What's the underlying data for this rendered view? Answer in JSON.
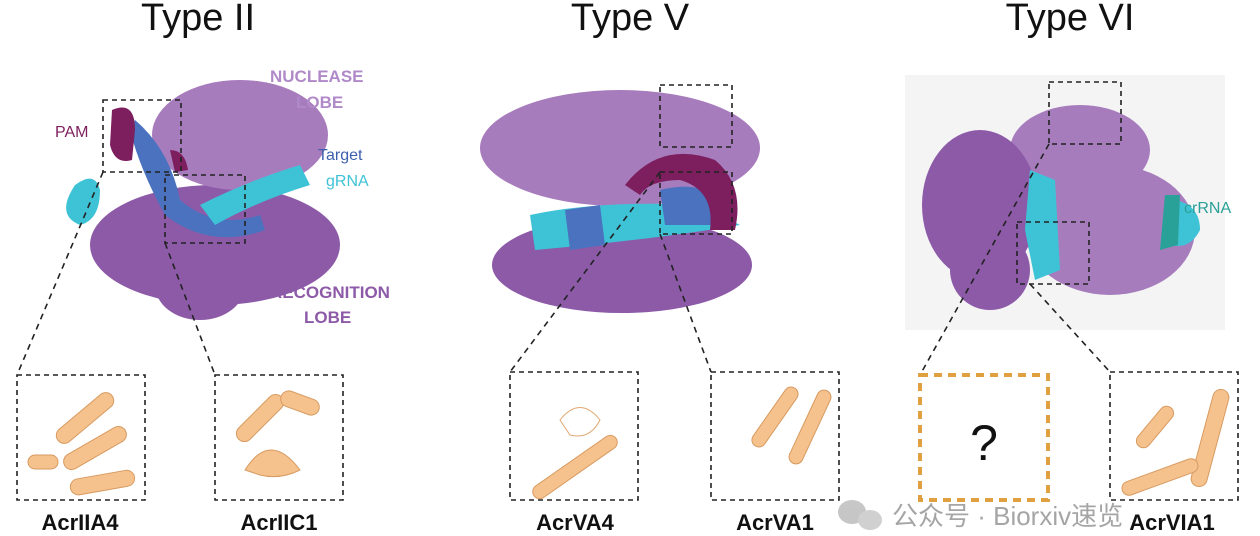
{
  "panels": [
    {
      "title": "Type II",
      "labels": {
        "nuclease": [
          "NUCLEASE",
          "LOBE"
        ],
        "pam": "PAM",
        "target": "Target",
        "grna": "gRNA",
        "recognition": [
          "RECOGNITION",
          "LOBE"
        ]
      },
      "insets": [
        "AcrIIA4",
        "AcrIIC1"
      ]
    },
    {
      "title": "Type V",
      "insets": [
        "AcrVA4",
        "AcrVA1"
      ]
    },
    {
      "title": "Type VI",
      "labels": {
        "crrna": "crRNA",
        "unknown": "?"
      },
      "insets": [
        "AcrVIA1"
      ]
    }
  ],
  "watermark": "公众号 · Biorxiv速览"
}
